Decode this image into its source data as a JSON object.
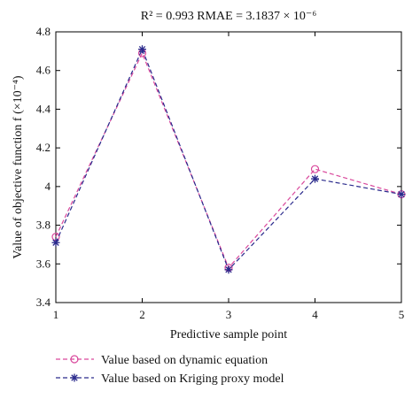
{
  "chart_data": {
    "type": "line",
    "title": "R² = 0.993 RMAE = 3.1837 × 10⁻⁶",
    "xlabel": "Predictive sample point",
    "ylabel": "Value of objective function f (×10⁻⁴)",
    "xlim": [
      1,
      5
    ],
    "ylim": [
      3.4,
      4.8
    ],
    "x": [
      1,
      2,
      3,
      4,
      5
    ],
    "x_ticks": [
      "1",
      "2",
      "3",
      "4",
      "5"
    ],
    "y_ticks": [
      "3.4",
      "3.6",
      "3.8",
      "4",
      "4.2",
      "4.4",
      "4.6",
      "4.8"
    ],
    "series": [
      {
        "name": "Value based on dynamic equation",
        "values": [
          3.74,
          4.69,
          3.58,
          4.09,
          3.96
        ],
        "color": "#d9489c",
        "marker": "circle"
      },
      {
        "name": "Value based on Kriging proxy model",
        "values": [
          3.71,
          4.71,
          3.57,
          4.04,
          3.96
        ],
        "color": "#2a2a8c",
        "marker": "star"
      }
    ],
    "grid": false,
    "legend_position": "bottom"
  }
}
